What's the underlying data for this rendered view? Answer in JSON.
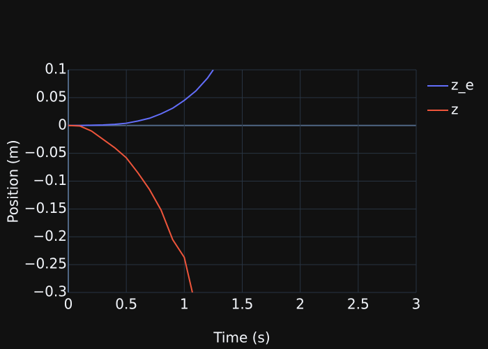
{
  "chart_data": {
    "type": "line",
    "xlabel": "Time (s)",
    "ylabel": "Position (m)",
    "xlim": [
      0,
      3
    ],
    "ylim": [
      -0.3,
      0.1
    ],
    "xticks": [
      0,
      0.5,
      1,
      1.5,
      2,
      2.5,
      3
    ],
    "yticks": [
      0.1,
      0.05,
      0,
      {
        "value": -0.05,
        "label": "−0.05"
      },
      {
        "value": -0.1,
        "label": "−0.1"
      },
      {
        "value": -0.15,
        "label": "−0.15"
      },
      {
        "value": -0.2,
        "label": "−0.2"
      },
      {
        "value": -0.25,
        "label": "−0.25"
      },
      {
        "value": -0.3,
        "label": "−0.3"
      }
    ],
    "grid": true,
    "legend": "top-right",
    "series": [
      {
        "name": "z_e",
        "color": "#636efa",
        "x": [
          0,
          0.1,
          0.2,
          0.3,
          0.4,
          0.5,
          0.6,
          0.7,
          0.8,
          0.9,
          1.0,
          1.1,
          1.2,
          1.25
        ],
        "values": [
          0,
          0,
          0.0005,
          0.001,
          0.002,
          0.004,
          0.008,
          0.013,
          0.021,
          0.031,
          0.045,
          0.062,
          0.085,
          0.1
        ]
      },
      {
        "name": "z",
        "color": "#ef553b",
        "x": [
          0,
          0.1,
          0.2,
          0.3,
          0.4,
          0.5,
          0.6,
          0.7,
          0.8,
          0.9,
          1.0,
          1.07
        ],
        "values": [
          0,
          -0.001,
          -0.01,
          -0.025,
          -0.04,
          -0.058,
          -0.085,
          -0.115,
          -0.152,
          -0.205,
          -0.237,
          -0.3
        ]
      }
    ]
  }
}
